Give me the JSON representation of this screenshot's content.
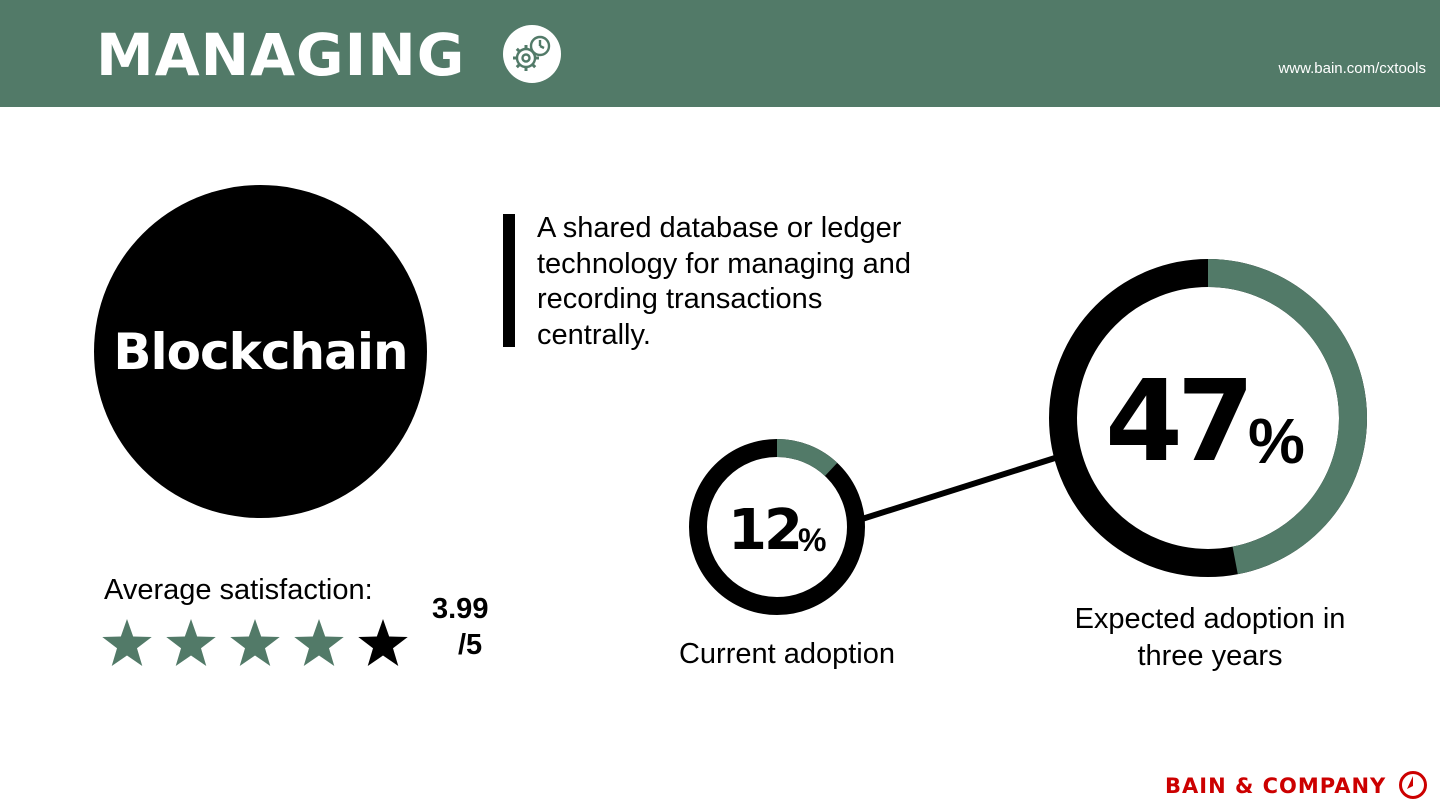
{
  "header": {
    "title": "MANAGING",
    "icon": "gear-clock-icon",
    "url": "www.bain.com/cxtools"
  },
  "topic": {
    "name": "Blockchain",
    "description": "A shared database or ledger technology for managing and recording transactions centrally."
  },
  "satisfaction": {
    "label": "Average satisfaction:",
    "score": "3.99",
    "max": "/5",
    "value": 3.99,
    "stars_total": 5,
    "stars_filled": 4
  },
  "adoption": {
    "current": {
      "value": 12,
      "number": "12",
      "symbol": "%",
      "label": "Current adoption"
    },
    "expected": {
      "value": 47,
      "number": "47",
      "symbol": "%",
      "label": "Expected adoption in three years"
    }
  },
  "colors": {
    "accent": "#527a68",
    "dark": "#000000",
    "brand": "#cc0000"
  },
  "footer": {
    "brand": "BAIN & COMPANY",
    "logo": "bain-logo-icon"
  }
}
